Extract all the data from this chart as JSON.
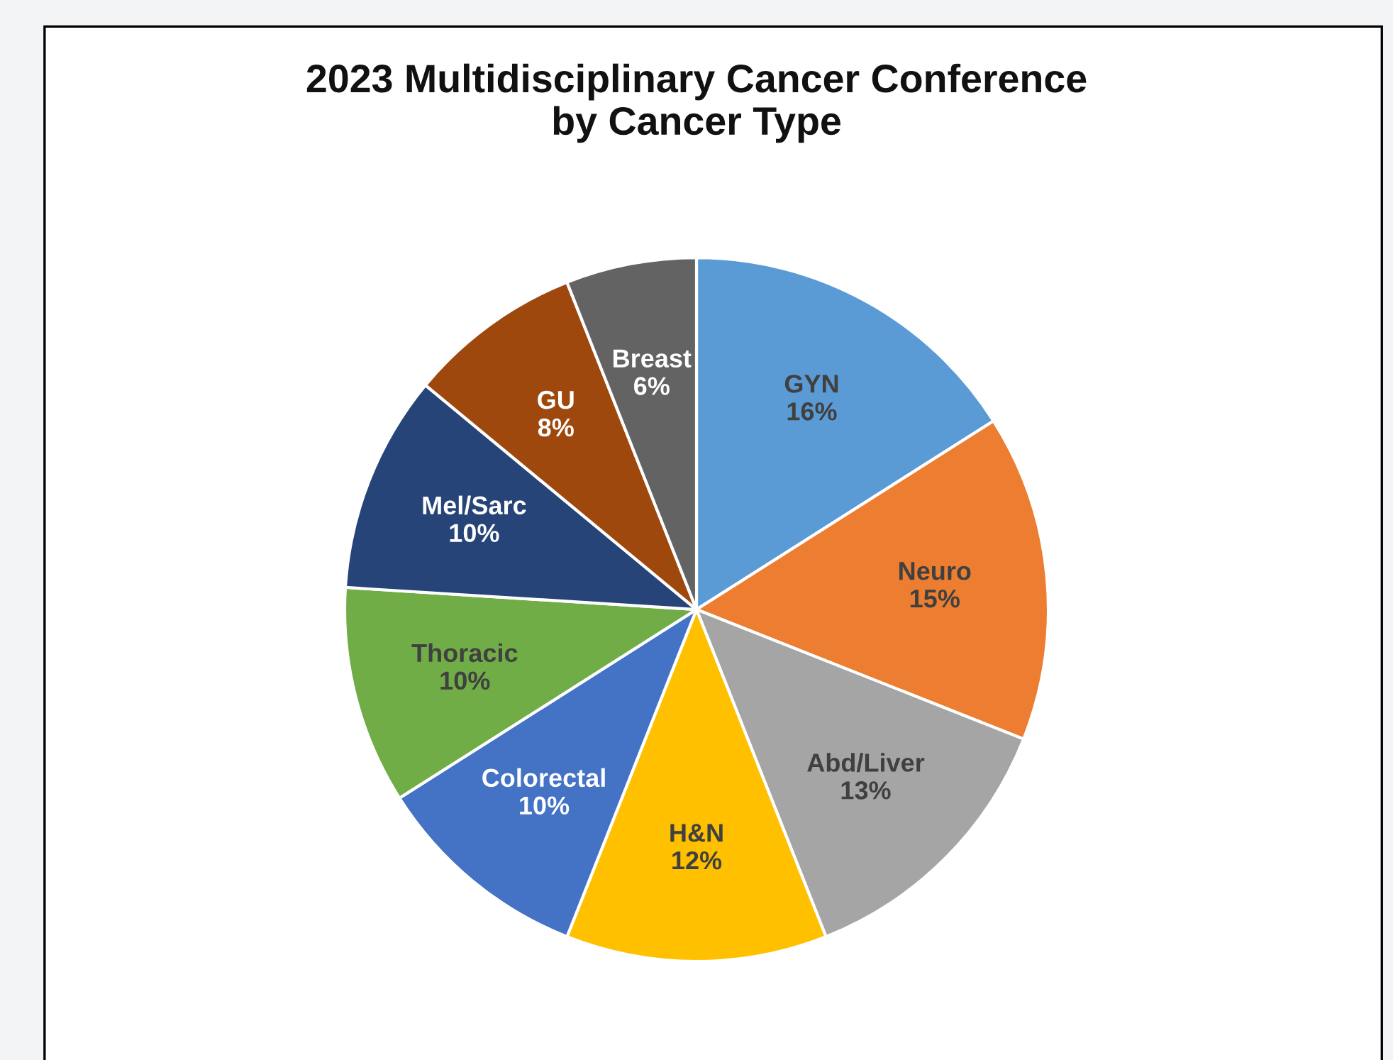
{
  "chart_data": {
    "type": "pie",
    "title": "2023 Multidisciplinary Cancer Conference\nby Cancer Type",
    "categories": [
      "GYN",
      "Neuro",
      "Abd/Liver",
      "H&N",
      "Colorectal",
      "Thoracic",
      "Mel/Sarc",
      "GU",
      "Breast"
    ],
    "values": [
      16,
      15,
      13,
      12,
      10,
      10,
      10,
      8,
      6
    ],
    "value_labels": [
      "16%",
      "15%",
      "13%",
      "12%",
      "10%",
      "10%",
      "10%",
      "8%",
      "6%"
    ],
    "colors": [
      "#5b9bd5",
      "#ed7d31",
      "#a5a5a5",
      "#ffc000",
      "#4472c4",
      "#70ad47",
      "#264478",
      "#9e480e",
      "#636363"
    ],
    "legend": false
  }
}
